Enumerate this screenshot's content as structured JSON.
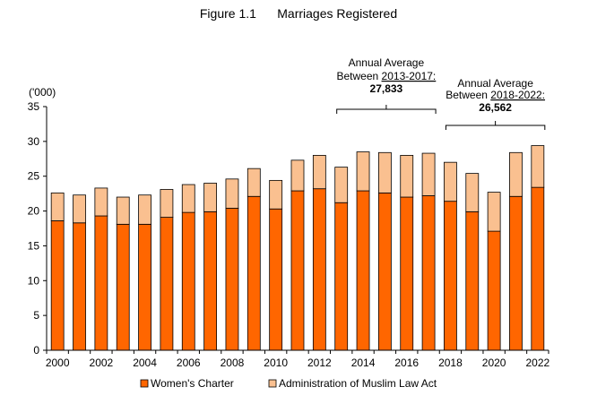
{
  "figure_label": "Figure 1.1",
  "figure_title": "Marriages Registered",
  "chart_data": {
    "type": "bar",
    "stacked": true,
    "title": "Marriages Registered",
    "ylabel": "('000)",
    "ylim": [
      0,
      35
    ],
    "yticks": [
      0,
      5,
      10,
      15,
      20,
      25,
      30,
      35
    ],
    "categories": [
      "2000",
      "2001",
      "2002",
      "2003",
      "2004",
      "2005",
      "2006",
      "2007",
      "2008",
      "2009",
      "2010",
      "2011",
      "2012",
      "2013",
      "2014",
      "2015",
      "2016",
      "2017",
      "2018",
      "2019",
      "2020",
      "2021",
      "2022"
    ],
    "xtick_labels": [
      "2000",
      "2002",
      "2004",
      "2006",
      "2008",
      "2010",
      "2012",
      "2014",
      "2016",
      "2018",
      "2020",
      "2022"
    ],
    "series": [
      {
        "name": "Women's Charter",
        "color": "#FF6600",
        "values": [
          18.6,
          18.3,
          19.3,
          18.1,
          18.1,
          19.1,
          19.8,
          19.9,
          20.4,
          22.1,
          20.3,
          22.9,
          23.2,
          21.2,
          22.9,
          22.6,
          22.0,
          22.2,
          21.4,
          19.9,
          17.1,
          22.1,
          23.4
        ]
      },
      {
        "name": "Administration of Muslim Law Act",
        "color": "#FAC090",
        "values": [
          4.0,
          4.0,
          4.0,
          3.9,
          4.2,
          4.0,
          4.0,
          4.1,
          4.2,
          4.0,
          4.1,
          4.4,
          4.8,
          5.1,
          5.6,
          5.8,
          6.0,
          6.1,
          5.6,
          5.5,
          5.6,
          6.3,
          6.0
        ]
      }
    ],
    "legend_position": "bottom",
    "grid": false,
    "annotations": [
      {
        "line1": "Annual Average",
        "line2_prefix": "Between ",
        "range": "2013-2017:",
        "value": "27,833",
        "from": "2013",
        "to": "2017"
      },
      {
        "line1": "Annual Average",
        "line2_prefix": "Between ",
        "range": "2018-2022:",
        "value": "26,562",
        "from": "2018",
        "to": "2022"
      }
    ]
  }
}
